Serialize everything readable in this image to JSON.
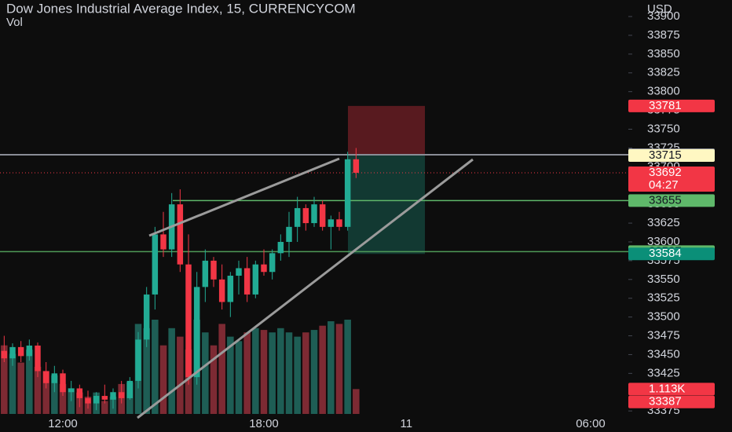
{
  "chart_data": {
    "type": "candlestick",
    "title": "Dow Jones Industrial Average Index, 15, CURRENCYCOM",
    "subtitle": "Vol",
    "y_axis_label": "USD",
    "categories": [
      null,
      null,
      null,
      null,
      null,
      null,
      null,
      "12:00",
      null,
      null,
      null,
      null,
      null,
      null,
      null,
      null,
      null,
      null,
      null,
      null,
      null,
      null,
      null,
      null,
      null,
      null,
      null,
      null,
      null,
      null,
      null,
      "18:00",
      null,
      null,
      null,
      null,
      null,
      null,
      null,
      null,
      null,
      null,
      null,
      null,
      null,
      null,
      null,
      null,
      "11",
      null,
      null,
      null,
      null,
      null,
      null,
      null,
      null,
      null,
      null,
      null,
      null,
      null,
      null,
      null,
      null,
      null,
      null,
      null,
      null,
      null,
      "06:00",
      null,
      null,
      null,
      null
    ],
    "open": [
      33455,
      33445,
      33460,
      33448,
      33462,
      33428,
      33412,
      33425,
      33400,
      33405,
      33392,
      33385,
      33395,
      33390,
      33400,
      33392,
      33415,
      33470,
      33530,
      33610,
      33590,
      33650,
      33570,
      33420,
      33540,
      33575,
      33550,
      33520,
      33555,
      33565,
      33530,
      33570,
      33560,
      33585,
      33600,
      33620,
      33645,
      33625,
      33650,
      33620,
      33630,
      33620,
      33710,
      null,
      null,
      null,
      null,
      null,
      null,
      null,
      null,
      null,
      null,
      null,
      null,
      null,
      null,
      null,
      null,
      null,
      null,
      null,
      null,
      null,
      null,
      null,
      null,
      null,
      null,
      null,
      null,
      null,
      null,
      null,
      null
    ],
    "high": [
      33475,
      33465,
      33468,
      33470,
      33466,
      33440,
      33435,
      33430,
      33415,
      33410,
      33402,
      33400,
      33410,
      33405,
      33415,
      33420,
      33480,
      33540,
      33620,
      33640,
      33665,
      33670,
      33610,
      33560,
      33590,
      33580,
      33570,
      33560,
      33575,
      33580,
      33575,
      33590,
      33590,
      33610,
      33640,
      33660,
      33650,
      33660,
      33655,
      33635,
      33640,
      33720,
      33725,
      null,
      null,
      null,
      null,
      null,
      null,
      null,
      null,
      null,
      null,
      null,
      null,
      null,
      null,
      null,
      null,
      null,
      null,
      null,
      null,
      null,
      null,
      null,
      null,
      null,
      null,
      null,
      null,
      null,
      null,
      null,
      null
    ],
    "low": [
      33440,
      33435,
      33440,
      33442,
      33420,
      33405,
      33400,
      33395,
      33388,
      33380,
      33378,
      33376,
      33385,
      33378,
      33385,
      33390,
      33405,
      33460,
      33510,
      33580,
      33580,
      33560,
      33410,
      33410,
      33520,
      33540,
      33510,
      33500,
      33530,
      33520,
      33525,
      33555,
      33550,
      33575,
      33580,
      33600,
      33615,
      33620,
      33615,
      33590,
      33615,
      33615,
      33685,
      null,
      null,
      null,
      null,
      null,
      null,
      null,
      null,
      null,
      null,
      null,
      null,
      null,
      null,
      null,
      null,
      null,
      null,
      null,
      null,
      null,
      null,
      null,
      null,
      null,
      null,
      null,
      null,
      null,
      null,
      null,
      null
    ],
    "close": [
      33445,
      33460,
      33448,
      33462,
      33428,
      33412,
      33425,
      33400,
      33405,
      33392,
      33385,
      33395,
      33390,
      33400,
      33392,
      33415,
      33470,
      33530,
      33610,
      33590,
      33650,
      33570,
      33420,
      33540,
      33575,
      33550,
      33520,
      33555,
      33565,
      33530,
      33570,
      33560,
      33585,
      33600,
      33620,
      33645,
      33625,
      33650,
      33620,
      33630,
      33620,
      33710,
      33692,
      null,
      null,
      null,
      null,
      null,
      null,
      null,
      null,
      null,
      null,
      null,
      null,
      null,
      null,
      null,
      null,
      null,
      null,
      null,
      null,
      null,
      null,
      null,
      null,
      null,
      null,
      null,
      null,
      null,
      null,
      null,
      null
    ],
    "volume": {
      "name": "Vol",
      "values": [
        3070,
        2690,
        2300,
        2880,
        2110,
        1920,
        1730,
        1340,
        1150,
        960,
        770,
        960,
        580,
        770,
        1340,
        1420,
        4030,
        3840,
        4220,
        3070,
        3840,
        3460,
        2880,
        4220,
        3650,
        3070,
        4030,
        3460,
        3260,
        3650,
        3840,
        3760,
        3650,
        3840,
        3650,
        3460,
        3650,
        3760,
        3950,
        4150,
        4030,
        4220,
        1113,
        null,
        null,
        null,
        null,
        null,
        null,
        null,
        null,
        null,
        null,
        null,
        null,
        null,
        null,
        null,
        null,
        null,
        null,
        null,
        null,
        null,
        null,
        null,
        null,
        null,
        null,
        null,
        null,
        null,
        null,
        null,
        null
      ],
      "value_labels": [
        null,
        null,
        null,
        null,
        null,
        null,
        null,
        null,
        null,
        null,
        null,
        null,
        null,
        null,
        null,
        null,
        null,
        null,
        null,
        null,
        null,
        null,
        null,
        null,
        null,
        null,
        null,
        null,
        null,
        null,
        null,
        null,
        null,
        null,
        null,
        null,
        null,
        null,
        null,
        null,
        null,
        null,
        "1.113K",
        null,
        null,
        null,
        null,
        null,
        null,
        null,
        null,
        null,
        null,
        null,
        null,
        null,
        null,
        null,
        null,
        null,
        null,
        null,
        null,
        null,
        null,
        null,
        null,
        null,
        null,
        null,
        null,
        null,
        null,
        null,
        null
      ],
      "value_label_color": "#f23645"
    },
    "up_color": "#22ab94",
    "down_color": "#f23645",
    "volume_up_color": "#1e5e55",
    "volume_down_color": "#7d2a33",
    "ylim": [
      33371,
      33922
    ],
    "yticks": [
      33375,
      33400,
      33425,
      33450,
      33475,
      33500,
      33525,
      33550,
      33575,
      33600,
      33625,
      33650,
      33675,
      33700,
      33725,
      33750,
      33775,
      33800,
      33825,
      33850,
      33875,
      33900
    ],
    "price_labels": [
      {
        "value": 33781,
        "color": "#f23645",
        "text_color": "#ffffff"
      },
      {
        "value": 33716,
        "color": "#8a8d96",
        "text_color": "#ffffff"
      },
      {
        "value": 33715,
        "color": "#fff7c2",
        "text_color": "#131722"
      },
      {
        "value": 33692,
        "color": "#f23645",
        "text_color": "#ffffff",
        "countdown": "04:27"
      },
      {
        "value": 33655,
        "color": "#5fb86a",
        "text_color": "#131722"
      },
      {
        "value": 33587,
        "color": "#5fb86a",
        "text_color": "#131722"
      },
      {
        "value": 33584,
        "color": "#0b8f78",
        "text_color": "#ffffff"
      },
      {
        "value": 33387,
        "color": "#f23645",
        "text_color": "#ffffff"
      }
    ]
  }
}
